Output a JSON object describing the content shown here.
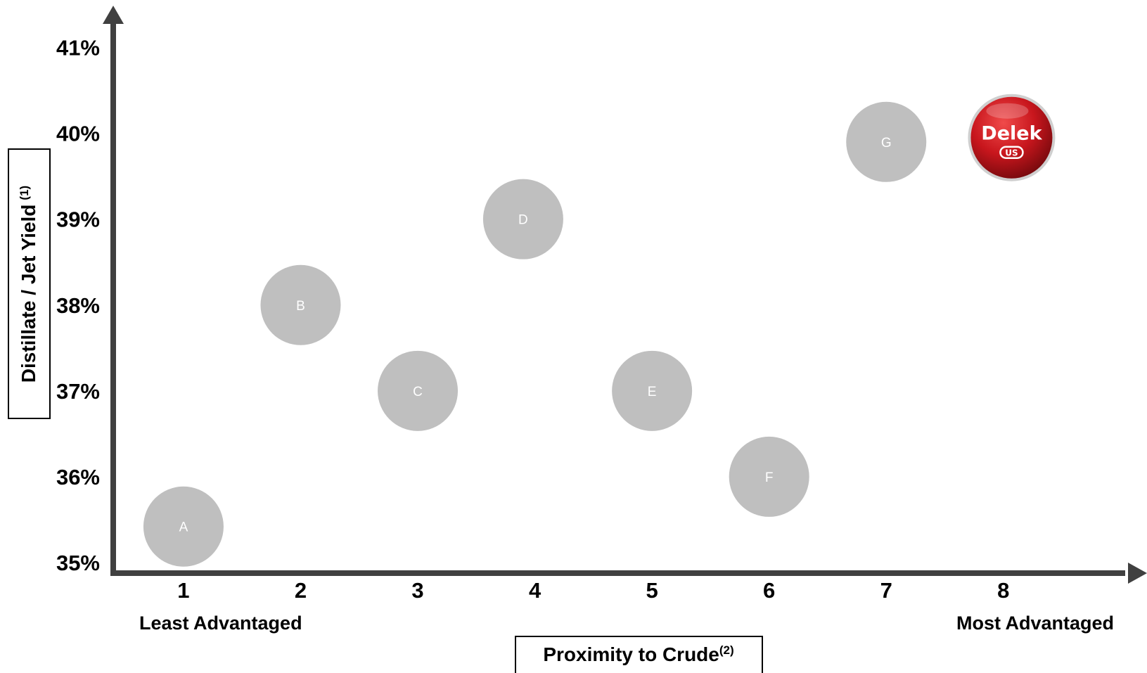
{
  "chart_data": {
    "type": "scatter",
    "title": "",
    "xlabel": "Proximity to Crude",
    "xlabel_note": "(2)",
    "ylabel": "Distillate / Jet Yield",
    "ylabel_note": "(1)",
    "xlim": [
      0.4,
      8.95
    ],
    "ylim": [
      35,
      41.25
    ],
    "x_ticks": [
      "1",
      "2",
      "3",
      "4",
      "5",
      "6",
      "7",
      "8"
    ],
    "y_ticks": [
      "41%",
      "40%",
      "39%",
      "38%",
      "37%",
      "36%",
      "35%"
    ],
    "y_tick_values": [
      41,
      40,
      39,
      38,
      37,
      36,
      35
    ],
    "x_annotations": {
      "left": "Least Advantaged",
      "right": "Most Advantaged"
    },
    "grid": false,
    "colors": {
      "bubble": "#bfbfbf",
      "axis": "#404040",
      "logo": "#c8161d"
    },
    "points": [
      {
        "label": "A",
        "x": 1,
        "y": 35.42
      },
      {
        "label": "B",
        "x": 2,
        "y": 38.0
      },
      {
        "label": "C",
        "x": 3,
        "y": 37.0
      },
      {
        "label": "D",
        "x": 3.9,
        "y": 39.0
      },
      {
        "label": "E",
        "x": 5,
        "y": 37.0
      },
      {
        "label": "F",
        "x": 6,
        "y": 36.0
      },
      {
        "label": "G",
        "x": 7,
        "y": 39.9
      }
    ],
    "highlight": {
      "logo": "delek-logo",
      "brand": "Delek",
      "sub": "US",
      "x": 8.07,
      "y": 39.95
    }
  }
}
